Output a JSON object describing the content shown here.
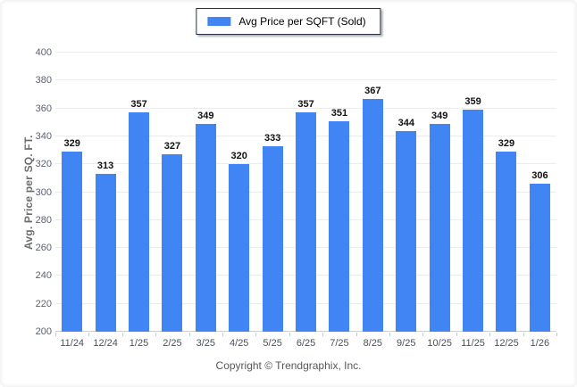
{
  "page": {
    "footer": "Copyright © Trendgraphix, Inc."
  },
  "legend": {
    "label": "Avg Price per SQFT (Sold)",
    "swatch_color": "#4184f3"
  },
  "chart_data": {
    "type": "bar",
    "title": "",
    "series_name": "Avg Price per SQFT (Sold)",
    "categories": [
      "11/24",
      "12/24",
      "1/25",
      "2/25",
      "3/25",
      "4/25",
      "5/25",
      "6/25",
      "7/25",
      "8/25",
      "9/25",
      "10/25",
      "11/25",
      "12/25",
      "1/26"
    ],
    "values": [
      329,
      313,
      357,
      327,
      349,
      320,
      333,
      357,
      351,
      367,
      344,
      349,
      359,
      329,
      306
    ],
    "xlabel": "",
    "ylabel": "Avg. Price per SQ. FT.",
    "ylim": [
      200,
      400
    ],
    "ytick_step": 20,
    "grid": "horizontal",
    "legend_position": "top-center",
    "bar_color": "#4184f3",
    "value_labels": true
  }
}
